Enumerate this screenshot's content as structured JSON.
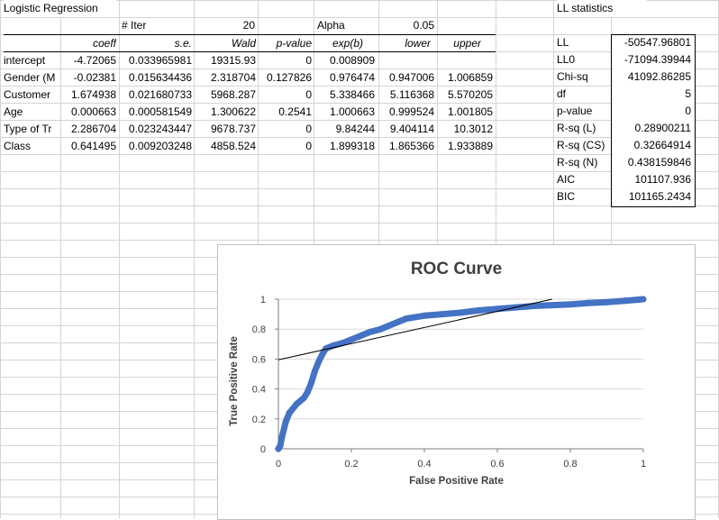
{
  "sheet": {
    "title": "Logistic Regression",
    "iter_label": "# Iter",
    "iter_value": "20",
    "alpha_label": "Alpha",
    "alpha_value": "0.05",
    "ll_title": "LL statistics"
  },
  "regression": {
    "headers": [
      "coeff",
      "s.e.",
      "Wald",
      "p-value",
      "exp(b)",
      "lower",
      "upper"
    ],
    "rows": [
      {
        "label": "intercept",
        "cells": [
          "-4.72065",
          "0.033965981",
          "19315.93",
          "0",
          "0.008909",
          "",
          ""
        ]
      },
      {
        "label": "Gender (M",
        "cells": [
          "-0.02381",
          "0.015634436",
          "2.318704",
          "0.127826",
          "0.976474",
          "0.947006",
          "1.006859"
        ]
      },
      {
        "label": "Customer",
        "cells": [
          "1.674938",
          "0.021680733",
          "5968.287",
          "0",
          "5.338466",
          "5.116368",
          "5.570205"
        ]
      },
      {
        "label": "Age",
        "cells": [
          "0.000663",
          "0.000581549",
          "1.300622",
          "0.2541",
          "1.000663",
          "0.999524",
          "1.001805"
        ]
      },
      {
        "label": "Type of Tr",
        "cells": [
          "2.286704",
          "0.023243447",
          "9678.737",
          "0",
          "9.84244",
          "9.404114",
          "10.3012"
        ]
      },
      {
        "label": "Class",
        "cells": [
          "0.641495",
          "0.009203248",
          "4858.524",
          "0",
          "1.899318",
          "1.865366",
          "1.933889"
        ]
      }
    ]
  },
  "ll_stats": [
    {
      "label": "LL",
      "value": "-50547.96801"
    },
    {
      "label": "LL0",
      "value": "-71094.39944"
    },
    {
      "label": "Chi-sq",
      "value": "41092.86285"
    },
    {
      "label": "df",
      "value": "5"
    },
    {
      "label": "p-value",
      "value": "0"
    },
    {
      "label": "R-sq (L)",
      "value": "0.28900211"
    },
    {
      "label": "R-sq (CS)",
      "value": "0.32664914"
    },
    {
      "label": "R-sq (N)",
      "value": "0.438159846"
    },
    {
      "label": "AIC",
      "value": "101107.936"
    },
    {
      "label": "BIC",
      "value": "101165.2434"
    }
  ],
  "colors": {
    "roc_series": "#4472c4",
    "trendline": "#000000",
    "gridline": "#d9d9d9"
  },
  "chart_data": {
    "type": "line",
    "title": "ROC Curve",
    "xlabel": "False Positive Rate",
    "ylabel": "True Positive Rate",
    "xlim": [
      0,
      1
    ],
    "ylim": [
      0,
      1
    ],
    "x_ticks": [
      "0",
      "0.2",
      "0.4",
      "0.6",
      "0.8",
      "1"
    ],
    "y_ticks": [
      "0",
      "0.2",
      "0.4",
      "0.6",
      "0.8",
      "1"
    ],
    "grid": true,
    "legend": "none",
    "series": [
      {
        "x": [
          0,
          0.005,
          0.01,
          0.02,
          0.03,
          0.05,
          0.07,
          0.08,
          0.09,
          0.1,
          0.11,
          0.12,
          0.13,
          0.15,
          0.18,
          0.2,
          0.22,
          0.25,
          0.28,
          0.3,
          0.33,
          0.35,
          0.4,
          0.45,
          0.5,
          0.55,
          0.6,
          0.65,
          0.7,
          0.75,
          0.8,
          0.85,
          0.9,
          0.95,
          1.0
        ],
        "y": [
          0,
          0.02,
          0.08,
          0.18,
          0.24,
          0.3,
          0.34,
          0.38,
          0.44,
          0.52,
          0.58,
          0.63,
          0.67,
          0.69,
          0.71,
          0.73,
          0.75,
          0.78,
          0.8,
          0.82,
          0.85,
          0.87,
          0.89,
          0.9,
          0.91,
          0.925,
          0.935,
          0.945,
          0.955,
          0.96,
          0.965,
          0.975,
          0.98,
          0.99,
          1.0
        ]
      }
    ],
    "trendline": {
      "x": [
        0,
        0.75
      ],
      "y": [
        0.595,
        1.0
      ]
    }
  }
}
